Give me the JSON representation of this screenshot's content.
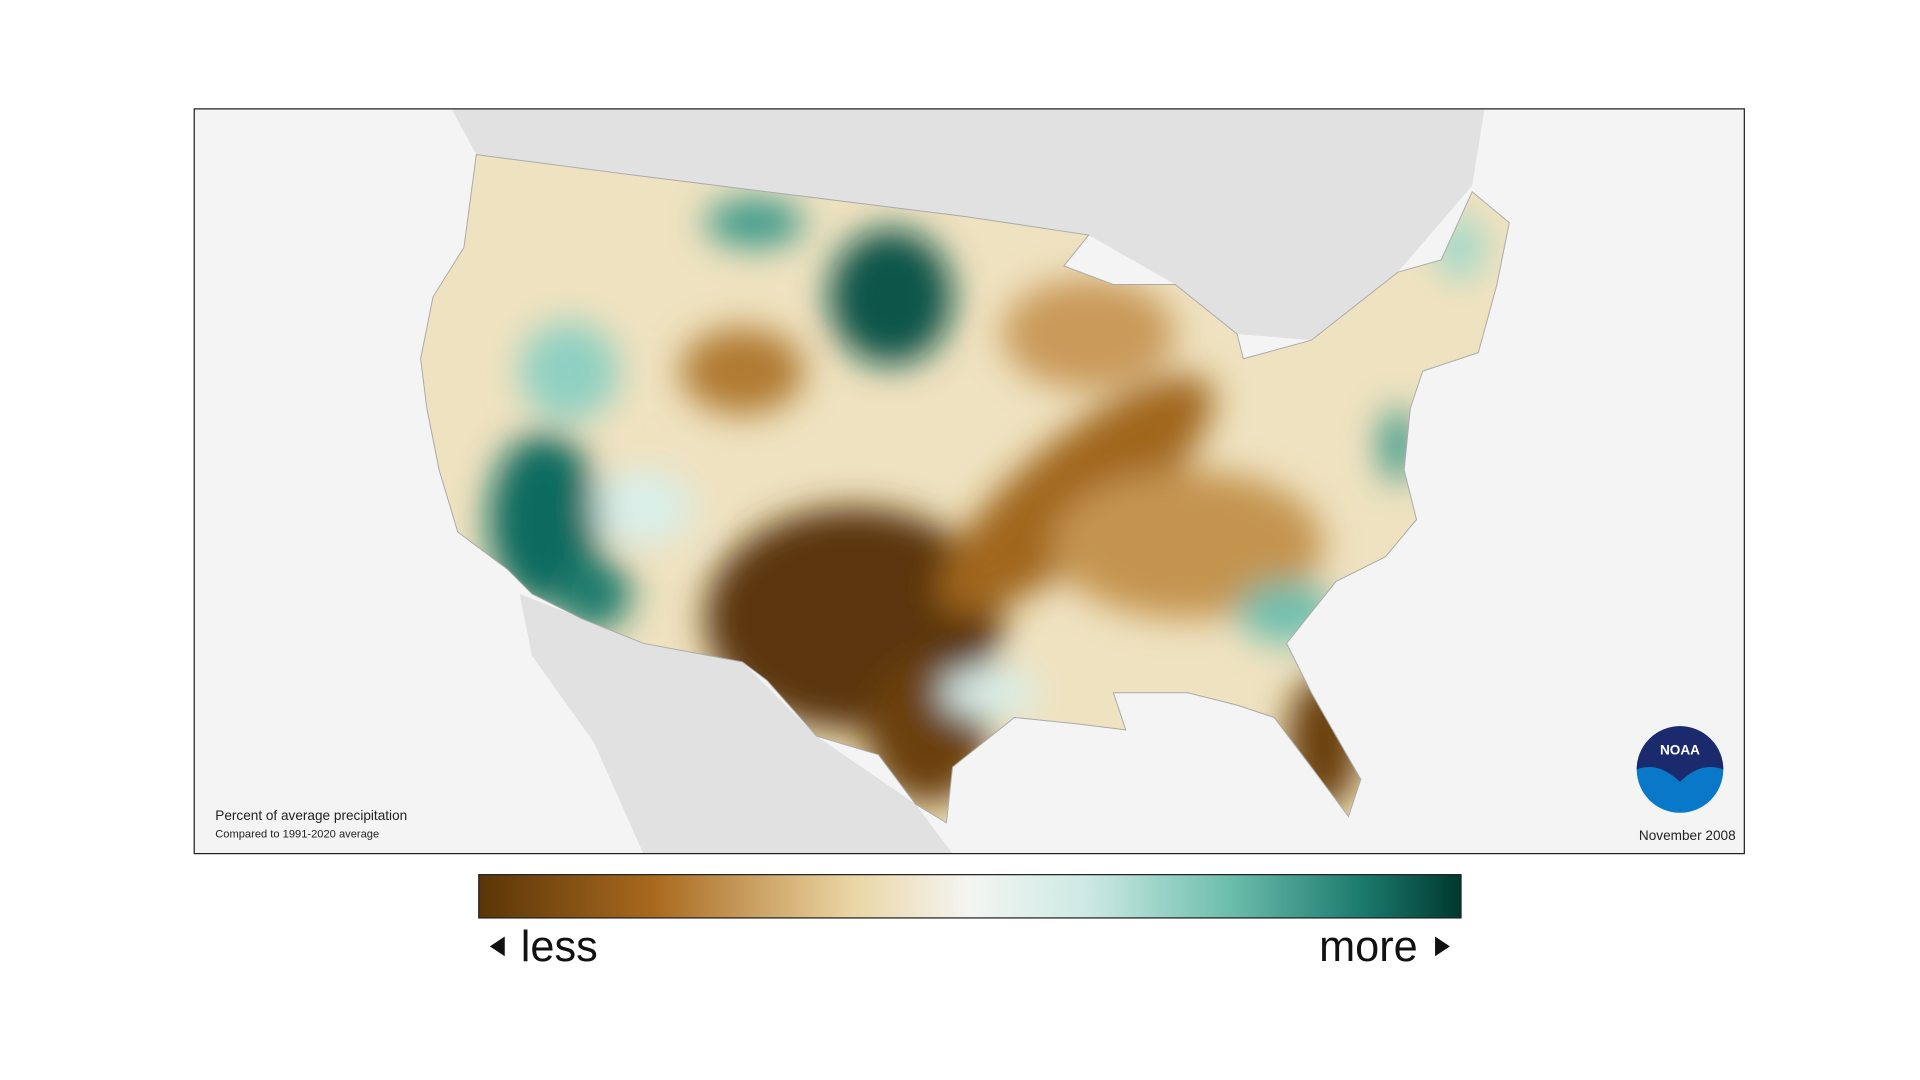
{
  "map": {
    "label": "Percent of average precipitation",
    "sublabel": "Compared to 1991-2020 average",
    "date": "November 2008",
    "logo": "NOAA"
  },
  "legend": {
    "low": "less",
    "high": "more"
  }
}
